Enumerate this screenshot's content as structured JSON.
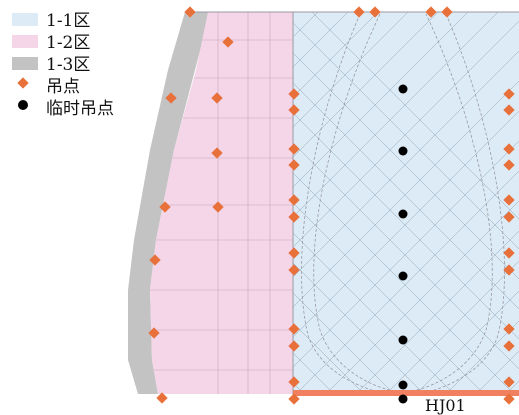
{
  "legend": {
    "zone_1_1": {
      "label": "1-1区",
      "color": "#dcebf5"
    },
    "zone_1_2": {
      "label": "1-2区",
      "color": "#f4d6e8"
    },
    "zone_1_3": {
      "label": "1-3区",
      "color": "#c3c3c3"
    },
    "lift_point": {
      "label": "吊点",
      "color": "#e8703a",
      "symbol": "diamond"
    },
    "temp_lift_point": {
      "label": "临时吊点",
      "color": "#000000",
      "symbol": "dot"
    }
  },
  "tag": {
    "label": "HJ01"
  },
  "colors": {
    "line": "#9a9aa4",
    "beam": "#f08060",
    "hatch": "#8ea2b4"
  }
}
